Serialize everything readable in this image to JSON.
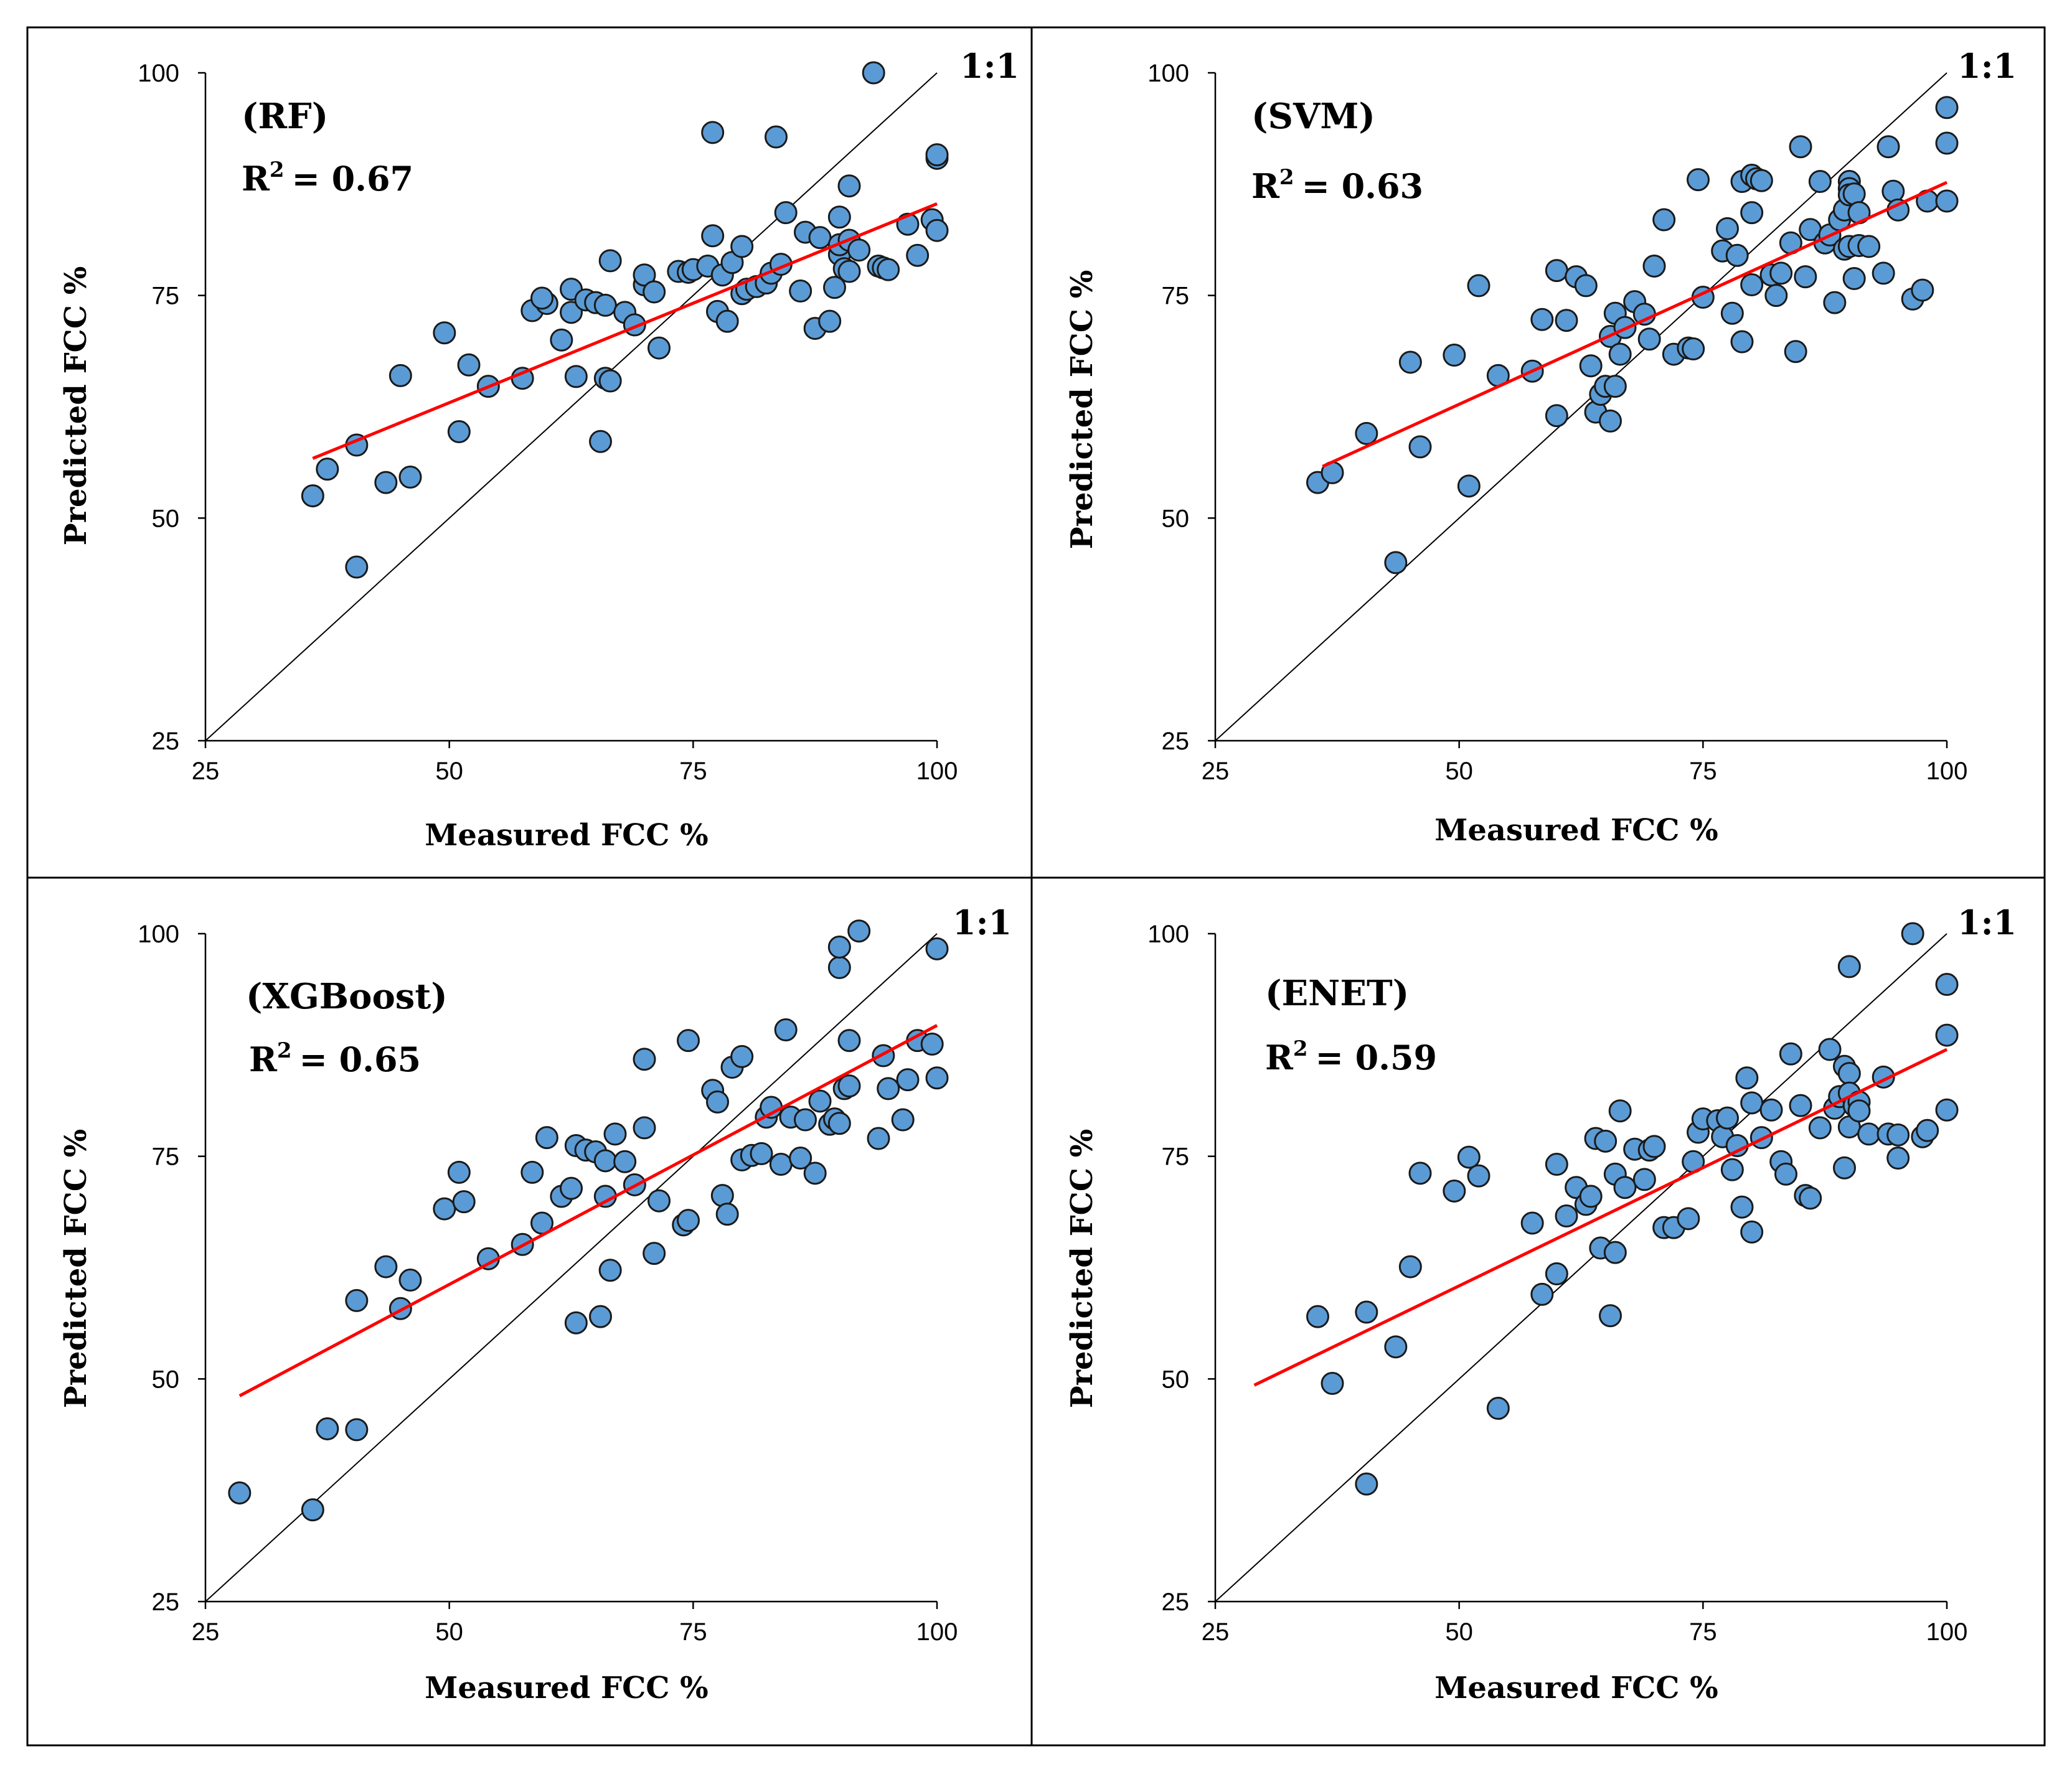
{
  "colors": {
    "marker_fill": "#5b9bd5",
    "marker_stroke": "#1a1a1a",
    "fit_line": "#ff0000",
    "one_to_one": "#000000",
    "border": "#000000"
  },
  "chart_data": [
    {
      "type": "scatter",
      "title": "(RF)",
      "r2_label": "R",
      "r2_value": "= 0.67",
      "r2_sup": "2",
      "identity_label": "1:1",
      "xlabel": "Measured FCC %",
      "ylabel": "Predicted FCC %",
      "xlim": [
        25,
        100
      ],
      "ylim": [
        25,
        100
      ],
      "xticks": [
        "25",
        "50",
        "75",
        "100"
      ],
      "yticks": [
        "25",
        "50",
        "75",
        "100"
      ],
      "fit": {
        "x": [
          36,
          100
        ],
        "y": [
          56.7,
          85.3
        ]
      },
      "x": [
        36,
        37.5,
        40.5,
        40.5,
        43.5,
        45,
        46,
        49.5,
        51,
        52,
        54,
        57.5,
        58.5,
        60,
        59.5,
        61.5,
        62.5,
        63,
        62.5,
        64,
        65,
        65.5,
        66,
        66,
        66.5,
        66.5,
        68,
        69,
        70,
        70,
        71,
        71.5,
        73.5,
        74.5,
        75,
        76.5,
        77,
        77,
        77.5,
        78,
        78.5,
        79,
        80,
        80,
        80.5,
        81.5,
        82.5,
        83,
        83.5,
        84,
        84.5,
        86,
        86.5,
        87.5,
        88,
        89,
        89.5,
        90,
        90,
        90,
        90.5,
        91,
        91,
        91,
        92,
        93.5,
        94,
        94.5,
        95,
        97,
        98,
        99.5,
        100,
        100,
        100
      ],
      "y": [
        52.5,
        55.5,
        44.5,
        58.2,
        54,
        66,
        54.6,
        70.8,
        59.7,
        67.2,
        64.8,
        65.7,
        73.3,
        74.1,
        74.7,
        70,
        73.1,
        65.9,
        75.7,
        74.5,
        74.2,
        58.6,
        65.7,
        73.9,
        65.4,
        78.9,
        73.1,
        71.7,
        76.2,
        77.3,
        75.4,
        69.1,
        77.7,
        77.6,
        77.9,
        78.3,
        93.3,
        81.7,
        73.2,
        77.3,
        72.1,
        78.7,
        75.2,
        80.5,
        75.7,
        76,
        76.4,
        77.5,
        92.8,
        78.5,
        84.3,
        75.5,
        82.1,
        71.3,
        81.5,
        72.1,
        75.9,
        79.6,
        83.8,
        80.7,
        78,
        77.7,
        87.3,
        81.2,
        80.1,
        100,
        78.3,
        78.1,
        77.9,
        83,
        79.5,
        83.5,
        90.4,
        90.8,
        82.3
      ]
    },
    {
      "type": "scatter",
      "title": "(SVM)",
      "r2_label": "R",
      "r2_value": "= 0.63",
      "r2_sup": "2",
      "identity_label": "1:1",
      "xlabel": "Measured FCC %",
      "ylabel": "Predicted FCC %",
      "xlim": [
        25,
        100
      ],
      "ylim": [
        25,
        100
      ],
      "xticks": [
        "25",
        "50",
        "75",
        "100"
      ],
      "yticks": [
        "25",
        "50",
        "75",
        "100"
      ],
      "fit": {
        "x": [
          36,
          100
        ],
        "y": [
          55.8,
          87.7
        ]
      },
      "x": [
        35.5,
        37,
        40.5,
        43.5,
        45,
        46,
        49.5,
        51,
        52,
        54,
        57.5,
        58.5,
        60,
        60,
        61,
        62,
        63,
        63.5,
        64,
        64.5,
        65,
        65.5,
        65.5,
        66,
        66,
        66.5,
        67,
        68,
        69,
        69.5,
        70,
        71,
        72,
        73.5,
        74,
        74.5,
        75,
        77,
        77.5,
        78,
        78.5,
        79,
        79,
        80,
        80,
        80,
        80.5,
        81,
        82,
        82.5,
        83,
        84,
        84.5,
        85,
        85.5,
        86,
        87,
        87.5,
        88,
        88.5,
        89,
        89.5,
        89.5,
        90,
        90,
        90,
        90,
        90.5,
        90.5,
        91,
        91,
        92,
        93.5,
        94,
        94.5,
        95,
        96.5,
        97.5,
        98,
        100,
        100,
        100
      ],
      "y": [
        54,
        55.1,
        59.5,
        45,
        67.5,
        58,
        68.3,
        53.6,
        76.1,
        66,
        66.5,
        72.3,
        61.5,
        77.8,
        72.2,
        77.1,
        76.1,
        67.1,
        61.9,
        63.9,
        64.8,
        60.9,
        70.4,
        64.8,
        73,
        68.4,
        71.4,
        74.3,
        72.9,
        70.1,
        78.3,
        83.5,
        68.4,
        69.1,
        69,
        88,
        74.8,
        80,
        82.5,
        73,
        79.5,
        69.8,
        87.8,
        76.2,
        84.3,
        88.5,
        88.1,
        87.9,
        77.3,
        75,
        77.5,
        80.9,
        68.7,
        91.7,
        77.1,
        82.4,
        87.8,
        80.9,
        81.8,
        74.2,
        83.5,
        84.6,
        80.2,
        87.8,
        87,
        86.3,
        80.5,
        76.9,
        86.4,
        84.3,
        80.6,
        80.5,
        77.5,
        91.7,
        86.7,
        84.6,
        74.6,
        75.6,
        85.6,
        92.1,
        96.1,
        85.6
      ]
    },
    {
      "type": "scatter",
      "title": "(XGBoost)",
      "r2_label": "R",
      "r2_value": "= 0.65",
      "r2_sup": "2",
      "identity_label": "1:1",
      "xlabel": "Measured FCC %",
      "ylabel": "Predicted FCC %",
      "xlim": [
        25,
        100
      ],
      "ylim": [
        25,
        100
      ],
      "xticks": [
        "25",
        "50",
        "75",
        "100"
      ],
      "yticks": [
        "25",
        "50",
        "75",
        "100"
      ],
      "fit": {
        "x": [
          28.5,
          100
        ],
        "y": [
          48.1,
          89.7
        ]
      },
      "x": [
        28.5,
        36,
        37.5,
        40.5,
        40.5,
        43.5,
        45,
        46,
        49.5,
        51,
        51.5,
        54,
        57.5,
        58.5,
        59.5,
        60,
        61.5,
        62.5,
        63,
        63,
        64,
        65,
        65.5,
        66,
        66,
        66.5,
        67,
        68,
        69,
        70,
        70,
        71,
        71.5,
        74,
        74.5,
        74.5,
        77,
        77.5,
        78,
        78.5,
        79,
        80,
        80,
        81,
        82,
        82.5,
        83,
        84,
        84.5,
        85,
        86,
        86.5,
        87.5,
        88,
        89,
        89.5,
        90,
        90,
        90,
        90.5,
        91,
        91,
        92,
        94,
        94.5,
        95,
        96.5,
        97,
        98,
        99.5,
        100,
        100
      ],
      "y": [
        37.2,
        35.3,
        44.4,
        44.3,
        58.8,
        62.6,
        57.9,
        61.1,
        69.1,
        73.2,
        69.9,
        63.5,
        65.1,
        73.2,
        67.5,
        77.1,
        70.5,
        71.4,
        76.2,
        56.3,
        75.7,
        75.5,
        57,
        70.5,
        74.5,
        62.2,
        77.5,
        74.4,
        71.8,
        78.2,
        85.9,
        64.1,
        70,
        67.3,
        67.8,
        88,
        82.4,
        81.1,
        70.6,
        68.5,
        85,
        74.6,
        86.2,
        75.1,
        75.3,
        79.4,
        80.5,
        74.1,
        89.2,
        79.4,
        74.8,
        79.1,
        73.1,
        81.2,
        78.6,
        79.2,
        96.2,
        98.5,
        78.7,
        82.6,
        88,
        82.9,
        100.3,
        77,
        86.3,
        82.6,
        79.1,
        83.6,
        88,
        87.6,
        98.3,
        83.8
      ]
    },
    {
      "type": "scatter",
      "title": "(ENET)",
      "r2_label": "R",
      "r2_value": "= 0.59",
      "r2_sup": "2",
      "identity_label": "1:1",
      "xlabel": "Measured FCC %",
      "ylabel": "Predicted FCC %",
      "xlim": [
        25,
        100
      ],
      "ylim": [
        25,
        100
      ],
      "xticks": [
        "25",
        "50",
        "75",
        "100"
      ],
      "yticks": [
        "25",
        "50",
        "75",
        "100"
      ],
      "fit": {
        "x": [
          29,
          100
        ],
        "y": [
          49.3,
          87
        ]
      },
      "x": [
        35.5,
        37,
        40.5,
        40.5,
        43.5,
        45,
        46,
        49.5,
        51,
        52,
        54,
        57.5,
        58.5,
        60,
        60,
        61,
        62,
        63,
        63.5,
        64,
        64.5,
        65,
        65.5,
        66,
        66,
        66.5,
        67,
        68,
        69,
        69.5,
        70,
        71,
        72,
        73.5,
        74,
        74.5,
        75,
        76.5,
        77,
        77.5,
        78,
        78.5,
        79,
        79.5,
        80,
        80,
        81,
        82,
        83,
        83.5,
        84,
        85,
        85.5,
        86,
        87,
        88,
        88.5,
        89,
        89.5,
        89.5,
        90,
        90,
        90,
        90,
        90.5,
        91,
        91,
        92,
        93.5,
        94,
        95,
        95,
        96.5,
        97.5,
        98,
        100,
        100,
        100
      ],
      "y": [
        57,
        49.5,
        57.5,
        38.2,
        53.6,
        62.6,
        73.1,
        71.1,
        74.9,
        72.8,
        46.7,
        67.5,
        59.5,
        61.8,
        74.1,
        68.3,
        71.5,
        69.6,
        70.5,
        77,
        64.7,
        76.7,
        57.1,
        64.2,
        73,
        80.1,
        71.5,
        75.8,
        72.4,
        75.7,
        76.1,
        67,
        67,
        68,
        74.4,
        77.7,
        79.2,
        79,
        77.2,
        79.3,
        73.5,
        76.2,
        69.3,
        83.8,
        66.5,
        81,
        77.1,
        80.2,
        74.4,
        73,
        86.5,
        80.7,
        70.6,
        70.3,
        78.2,
        87,
        80.4,
        81.7,
        73.7,
        85.1,
        96.3,
        78.3,
        84.3,
        82.1,
        80.7,
        81.1,
        80.1,
        77.5,
        83.9,
        77.5,
        74.8,
        77.4,
        100,
        77.2,
        77.9,
        94.3,
        88.6,
        80.2
      ]
    }
  ]
}
